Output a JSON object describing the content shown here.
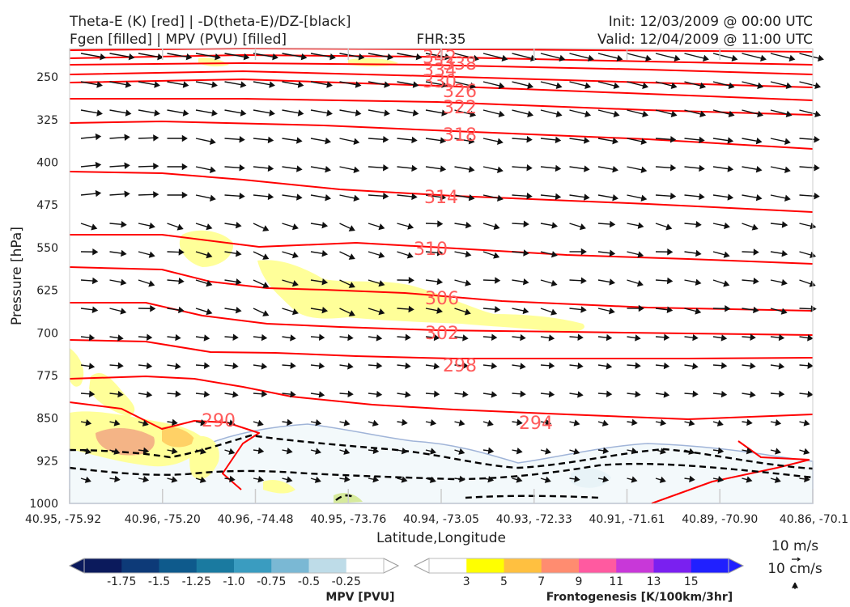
{
  "header": {
    "title_line1": "Theta-E (K) [red] | -D(theta-E)/DZ-[black]",
    "title_line2": "Fgen [filled] | MPV (PVU) [filled]",
    "fhr": "FHR:35",
    "init": "Init: 12/03/2009 @ 00:00 UTC",
    "valid": "Valid: 12/04/2009 @ 11:00 UTC"
  },
  "chart_data": {
    "type": "contour",
    "xlabel": "Latitude,Longitude",
    "ylabel": "Pressure [hPa]",
    "ylim": [
      1000,
      200
    ],
    "y_ticks": [
      "250",
      "325",
      "400",
      "475",
      "550",
      "625",
      "700",
      "775",
      "850",
      "925",
      "1000"
    ],
    "x_ticks": [
      "40.95, -75.92",
      "40.96, -75.20",
      "40.96, -74.48",
      "40.95, -73.76",
      "40.94, -73.05",
      "40.93, -72.33",
      "40.91, -71.61",
      "40.89, -70.90",
      "40.86, -70.1"
    ],
    "theta_e_contour_labels": [
      "342",
      "338",
      "334",
      "330",
      "326",
      "322",
      "318",
      "314",
      "310",
      "306",
      "302",
      "298",
      "294",
      "290"
    ],
    "colors": {
      "theta_e": "#ff0000",
      "dthetae_dz": "#000000",
      "mpv_outline": "#a0b4d8"
    },
    "mpv_colorbar": {
      "label": "MPV [PVU]",
      "ticks": [
        "-1.75",
        "-1.5",
        "-1.25",
        "-1.0",
        "-0.75",
        "-0.5",
        "-0.25"
      ],
      "colors": [
        "#0b1a5c",
        "#0d3a78",
        "#0e5a8c",
        "#1a7aa0",
        "#3a9cc0",
        "#7ab8d4",
        "#bedce8",
        "#ffffff"
      ]
    },
    "fgen_colorbar": {
      "label": "Frontogenesis [K/100km/3hr]",
      "ticks": [
        "3",
        "5",
        "7",
        "9",
        "11",
        "13",
        "15"
      ],
      "colors": [
        "#ffffff",
        "#ffff00",
        "#ffc040",
        "#ff8c70",
        "#ff5aa0",
        "#c838d8",
        "#7a20f0",
        "#2020ff"
      ]
    },
    "wind_reference": {
      "horizontal": "10 m/s",
      "vertical": "10 cm/s"
    }
  }
}
